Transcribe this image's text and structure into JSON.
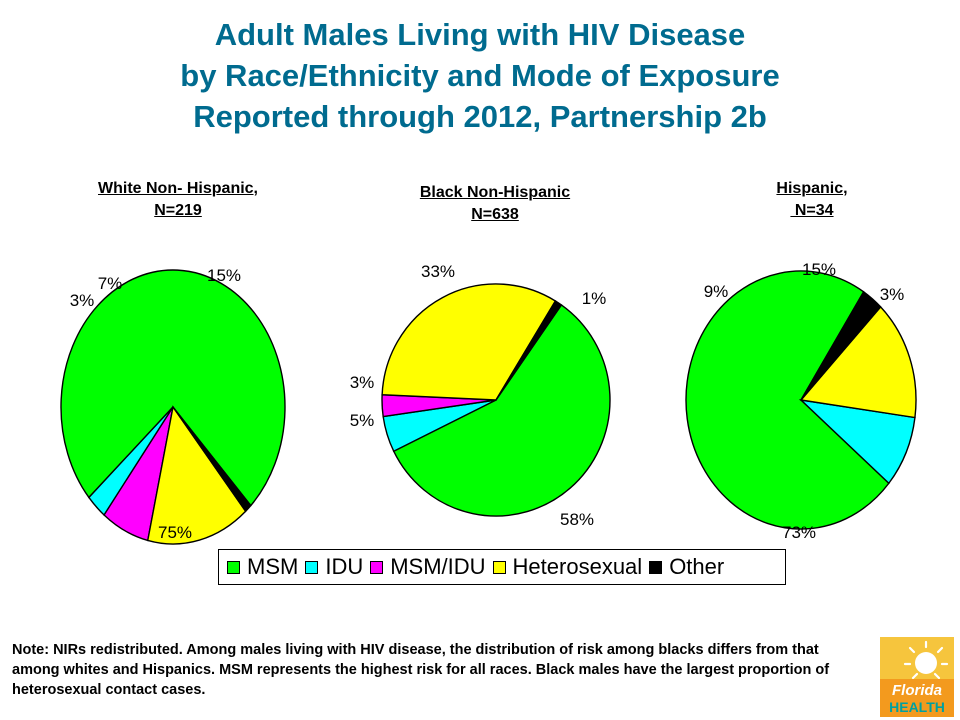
{
  "title": {
    "line1": "Adult Males Living with HIV Disease",
    "line2": "by Race/Ethnicity and Mode of Exposure",
    "line3": "Reported through 2012, Partnership 2b"
  },
  "chart_data": [
    {
      "type": "pie",
      "title_line1": "White Non- Hispanic,",
      "title_line2": "N=219",
      "categories": [
        "MSM",
        "IDU",
        "MSM/IDU",
        "Heterosexual",
        "Other"
      ],
      "values": [
        75,
        3,
        7,
        15,
        1
      ],
      "labels": [
        "75%",
        "3%",
        "7%",
        "15%",
        ""
      ]
    },
    {
      "type": "pie",
      "title_line1": "Black Non-Hispanic",
      "title_line2": "N=638",
      "categories": [
        "MSM",
        "IDU",
        "MSM/IDU",
        "Heterosexual",
        "Other"
      ],
      "values": [
        58,
        5,
        3,
        33,
        1
      ],
      "labels": [
        "58%",
        "5%",
        "3%",
        "33%",
        "1%"
      ]
    },
    {
      "type": "pie",
      "title_line1": "Hispanic,",
      "title_line2": " N=34",
      "categories": [
        "MSM",
        "IDU",
        "MSM/IDU",
        "Heterosexual",
        "Other"
      ],
      "values": [
        73,
        9,
        0,
        15,
        3
      ],
      "labels": [
        "73%",
        "9%",
        "",
        "15%",
        "3%"
      ]
    }
  ],
  "legend": [
    {
      "label": "MSM",
      "color": "#00ff00"
    },
    {
      "label": "IDU",
      "color": "#00ffff"
    },
    {
      "label": "MSM/IDU",
      "color": "#ff00ff"
    },
    {
      "label": "Heterosexual",
      "color": "#ffff00"
    },
    {
      "label": "Other",
      "color": "#000000"
    }
  ],
  "note": "Note: NIRs redistributed.  Among males living with HIV disease, the distribution of risk among blacks differs from that among whites and Hispanics.  MSM represents the highest risk for all races.  Black males have the largest proportion of heterosexual contact cases.",
  "logo": {
    "line1": "Florida",
    "line2": "HEALTH"
  }
}
